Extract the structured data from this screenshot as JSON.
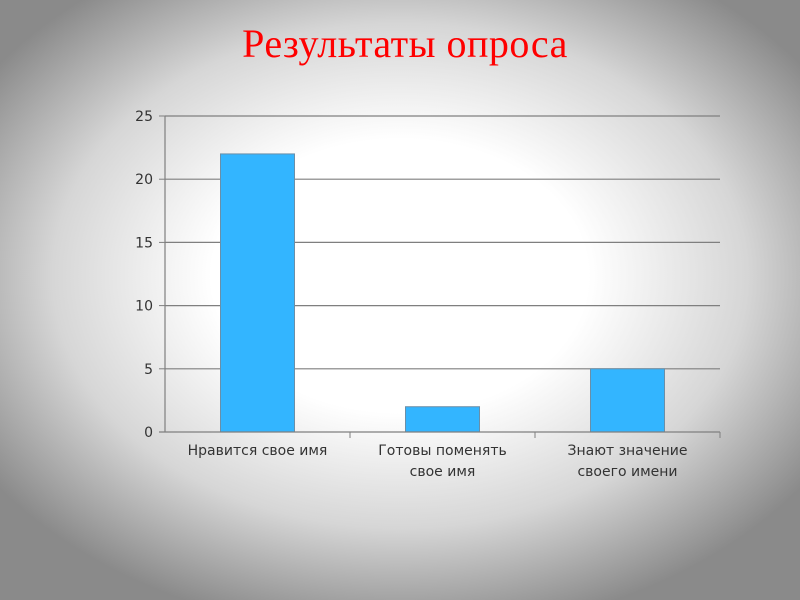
{
  "slide": {
    "title": "Результаты опроса"
  },
  "colors": {
    "title": "#ff0000",
    "bar": "#33b5ff",
    "grid": "#7f7f7f"
  },
  "chart_data": {
    "type": "bar",
    "title": "Результаты опроса",
    "categories": [
      [
        "Нравится свое  имя"
      ],
      [
        "Готовы поменять",
        "свое имя"
      ],
      [
        "Знают значение",
        "своего имени"
      ]
    ],
    "values": [
      22,
      2,
      5
    ],
    "ylim": [
      0,
      25
    ],
    "yticks": [
      "0",
      "5",
      "10",
      "15",
      "20",
      "25"
    ],
    "grid": true,
    "legend": "none"
  }
}
